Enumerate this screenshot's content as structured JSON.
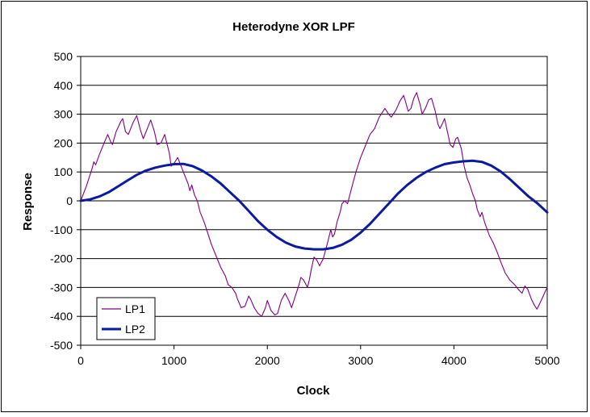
{
  "chart_data": {
    "type": "line",
    "title": "Heterodyne XOR LPF",
    "xlabel": "Clock",
    "ylabel": "Response",
    "xlim": [
      0,
      5000
    ],
    "ylim": [
      -500,
      500
    ],
    "x_ticks": [
      0,
      1000,
      2000,
      3000,
      4000,
      5000
    ],
    "y_ticks": [
      500,
      400,
      300,
      200,
      100,
      0,
      -100,
      -200,
      -300,
      -400,
      -500
    ],
    "grid": "horizontal",
    "legend_position": "bottom-left",
    "series": [
      {
        "name": "LP1",
        "color": "#800080",
        "points": [
          [
            0,
            0
          ],
          [
            60,
            50
          ],
          [
            120,
            110
          ],
          [
            140,
            135
          ],
          [
            160,
            125
          ],
          [
            200,
            160
          ],
          [
            250,
            200
          ],
          [
            290,
            230
          ],
          [
            320,
            205
          ],
          [
            340,
            195
          ],
          [
            380,
            240
          ],
          [
            430,
            275
          ],
          [
            450,
            285
          ],
          [
            480,
            240
          ],
          [
            510,
            230
          ],
          [
            560,
            270
          ],
          [
            600,
            295
          ],
          [
            640,
            245
          ],
          [
            670,
            215
          ],
          [
            720,
            255
          ],
          [
            750,
            280
          ],
          [
            790,
            240
          ],
          [
            820,
            195
          ],
          [
            860,
            200
          ],
          [
            900,
            230
          ],
          [
            950,
            165
          ],
          [
            970,
            120
          ],
          [
            1000,
            130
          ],
          [
            1040,
            150
          ],
          [
            1070,
            125
          ],
          [
            1100,
            100
          ],
          [
            1150,
            60
          ],
          [
            1170,
            35
          ],
          [
            1190,
            55
          ],
          [
            1220,
            20
          ],
          [
            1250,
            0
          ],
          [
            1280,
            -40
          ],
          [
            1300,
            -55
          ],
          [
            1330,
            -80
          ],
          [
            1400,
            -150
          ],
          [
            1450,
            -190
          ],
          [
            1500,
            -230
          ],
          [
            1550,
            -260
          ],
          [
            1580,
            -290
          ],
          [
            1620,
            -300
          ],
          [
            1660,
            -320
          ],
          [
            1680,
            -340
          ],
          [
            1720,
            -370
          ],
          [
            1760,
            -365
          ],
          [
            1800,
            -330
          ],
          [
            1820,
            -340
          ],
          [
            1860,
            -370
          ],
          [
            1900,
            -390
          ],
          [
            1940,
            -400
          ],
          [
            1980,
            -370
          ],
          [
            2000,
            -345
          ],
          [
            2040,
            -380
          ],
          [
            2080,
            -395
          ],
          [
            2110,
            -390
          ],
          [
            2150,
            -345
          ],
          [
            2190,
            -320
          ],
          [
            2230,
            -345
          ],
          [
            2260,
            -370
          ],
          [
            2300,
            -330
          ],
          [
            2340,
            -290
          ],
          [
            2360,
            -265
          ],
          [
            2390,
            -275
          ],
          [
            2430,
            -300
          ],
          [
            2450,
            -275
          ],
          [
            2470,
            -240
          ],
          [
            2500,
            -195
          ],
          [
            2530,
            -205
          ],
          [
            2560,
            -225
          ],
          [
            2600,
            -200
          ],
          [
            2650,
            -140
          ],
          [
            2680,
            -100
          ],
          [
            2700,
            -125
          ],
          [
            2720,
            -115
          ],
          [
            2750,
            -70
          ],
          [
            2780,
            -40
          ],
          [
            2800,
            -10
          ],
          [
            2830,
            0
          ],
          [
            2860,
            -10
          ],
          [
            2900,
            40
          ],
          [
            2950,
            100
          ],
          [
            3000,
            150
          ],
          [
            3050,
            190
          ],
          [
            3100,
            230
          ],
          [
            3150,
            250
          ],
          [
            3200,
            290
          ],
          [
            3230,
            305
          ],
          [
            3260,
            320
          ],
          [
            3300,
            300
          ],
          [
            3330,
            290
          ],
          [
            3380,
            315
          ],
          [
            3420,
            345
          ],
          [
            3460,
            365
          ],
          [
            3480,
            345
          ],
          [
            3510,
            310
          ],
          [
            3540,
            320
          ],
          [
            3570,
            355
          ],
          [
            3600,
            375
          ],
          [
            3640,
            330
          ],
          [
            3660,
            300
          ],
          [
            3700,
            325
          ],
          [
            3730,
            350
          ],
          [
            3760,
            355
          ],
          [
            3800,
            310
          ],
          [
            3830,
            265
          ],
          [
            3850,
            250
          ],
          [
            3880,
            270
          ],
          [
            3900,
            285
          ],
          [
            3930,
            240
          ],
          [
            3960,
            195
          ],
          [
            3990,
            185
          ],
          [
            4020,
            215
          ],
          [
            4040,
            220
          ],
          [
            4080,
            180
          ],
          [
            4110,
            120
          ],
          [
            4140,
            80
          ],
          [
            4170,
            55
          ],
          [
            4200,
            25
          ],
          [
            4230,
            0
          ],
          [
            4250,
            -30
          ],
          [
            4280,
            -55
          ],
          [
            4300,
            -40
          ],
          [
            4330,
            -75
          ],
          [
            4380,
            -120
          ],
          [
            4420,
            -145
          ],
          [
            4460,
            -175
          ],
          [
            4500,
            -210
          ],
          [
            4550,
            -250
          ],
          [
            4600,
            -275
          ],
          [
            4650,
            -290
          ],
          [
            4700,
            -310
          ],
          [
            4730,
            -320
          ],
          [
            4760,
            -295
          ],
          [
            4790,
            -305
          ],
          [
            4830,
            -340
          ],
          [
            4860,
            -360
          ],
          [
            4890,
            -375
          ],
          [
            4920,
            -355
          ],
          [
            4950,
            -335
          ],
          [
            4970,
            -320
          ],
          [
            5000,
            -300
          ]
        ]
      },
      {
        "name": "LP2",
        "color": "#0b1ba0",
        "points": [
          [
            0,
            0
          ],
          [
            100,
            5
          ],
          [
            200,
            15
          ],
          [
            300,
            30
          ],
          [
            400,
            50
          ],
          [
            500,
            70
          ],
          [
            600,
            90
          ],
          [
            700,
            105
          ],
          [
            800,
            115
          ],
          [
            900,
            122
          ],
          [
            1000,
            127
          ],
          [
            1100,
            128
          ],
          [
            1200,
            120
          ],
          [
            1300,
            105
          ],
          [
            1400,
            85
          ],
          [
            1500,
            60
          ],
          [
            1600,
            30
          ],
          [
            1700,
            0
          ],
          [
            1800,
            -35
          ],
          [
            1900,
            -70
          ],
          [
            2000,
            -100
          ],
          [
            2100,
            -125
          ],
          [
            2200,
            -145
          ],
          [
            2300,
            -158
          ],
          [
            2400,
            -165
          ],
          [
            2500,
            -168
          ],
          [
            2600,
            -168
          ],
          [
            2700,
            -163
          ],
          [
            2800,
            -152
          ],
          [
            2900,
            -135
          ],
          [
            3000,
            -110
          ],
          [
            3100,
            -80
          ],
          [
            3200,
            -45
          ],
          [
            3300,
            -10
          ],
          [
            3400,
            25
          ],
          [
            3500,
            55
          ],
          [
            3600,
            80
          ],
          [
            3700,
            100
          ],
          [
            3800,
            115
          ],
          [
            3900,
            127
          ],
          [
            4000,
            133
          ],
          [
            4100,
            137
          ],
          [
            4200,
            139
          ],
          [
            4300,
            135
          ],
          [
            4400,
            122
          ],
          [
            4500,
            102
          ],
          [
            4600,
            75
          ],
          [
            4700,
            45
          ],
          [
            4800,
            15
          ],
          [
            4900,
            -10
          ],
          [
            5000,
            -40
          ]
        ]
      }
    ]
  }
}
